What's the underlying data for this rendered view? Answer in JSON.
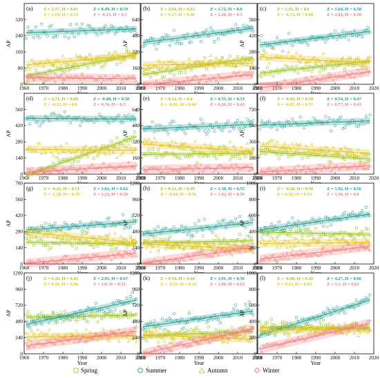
{
  "colors": {
    "Spring": "#9bc21a",
    "Summer": "#1c9a8e",
    "Autumn": "#e3c21c",
    "Winter": "#f07a78"
  },
  "x_axis_label": "Year",
  "y_axis_label": "AP",
  "legend": [
    "Spring",
    "Summer",
    "Autumn",
    "Winter"
  ],
  "chart_data": [
    {
      "type": "scatter",
      "panel": "(a)",
      "xlim": [
        1960,
        2020
      ],
      "ylim": [
        0,
        400
      ],
      "yticks": [
        0,
        80,
        160,
        240,
        320
      ],
      "xticks": [
        1960,
        1970,
        1980,
        1990,
        2000,
        2010,
        2020
      ],
      "xlabel": "Year",
      "ylabel": "AP",
      "series": [
        {
          "name": "Spring",
          "mean": 95,
          "stats": "Z = 2.57, H = 0.61"
        },
        {
          "name": "Summer",
          "mean": 265,
          "stats": "Z = 0.49, H = 0.59"
        },
        {
          "name": "Autumn",
          "mean": 120,
          "stats": "Z = 1.19, H = 0.53"
        },
        {
          "name": "Winter",
          "mean": 30,
          "stats": "Z = -0.13, H = 0.5"
        }
      ]
    },
    {
      "type": "scatter",
      "panel": "(b)",
      "xlim": [
        1960,
        2020
      ],
      "ylim": [
        0,
        800
      ],
      "yticks": [
        0,
        160,
        320,
        480,
        640
      ],
      "xticks": [
        1960,
        1970,
        1980,
        1990,
        2000,
        2010,
        2020
      ],
      "xlabel": "Year",
      "ylabel": "AP",
      "series": [
        {
          "name": "Spring",
          "mean": 180,
          "stats": "Z = 2.04, H = 0.62"
        },
        {
          "name": "Summer",
          "mean": 485,
          "stats": "Z = 1.72, H = 0.6"
        },
        {
          "name": "Autumn",
          "mean": 200,
          "stats": "Z = 0.27, H = 0.46"
        },
        {
          "name": "Winter",
          "mean": 45,
          "stats": "Z = 1.26, H = 0.5"
        }
      ]
    },
    {
      "type": "scatter",
      "panel": "(c)",
      "xlim": [
        1960,
        2020
      ],
      "ylim": [
        0,
        700
      ],
      "yticks": [
        0,
        140,
        280,
        420,
        560
      ],
      "xticks": [
        1960,
        1970,
        1980,
        1990,
        2000,
        2010,
        2020
      ],
      "xlabel": "Year",
      "ylabel": "AP",
      "series": [
        {
          "name": "Spring",
          "mean": 150,
          "stats": "Z = 1.45, H = 0.6"
        },
        {
          "name": "Summer",
          "mean": 400,
          "stats": "Z = 1.64, H = 0.58"
        },
        {
          "name": "Autumn",
          "mean": 210,
          "stats": "Z = -0.73, H = 0.68"
        },
        {
          "name": "Winter",
          "mean": 40,
          "stats": "Z = 2.01, H = 0.58"
        }
      ]
    },
    {
      "type": "scatter",
      "panel": "(d)",
      "xlim": [
        1960,
        2020
      ],
      "ylim": [
        0,
        700
      ],
      "yticks": [
        0,
        140,
        280,
        420,
        560
      ],
      "xticks": [
        1960,
        1970,
        1980,
        1990,
        2000,
        2010,
        2020
      ],
      "xlabel": "Year",
      "ylabel": "AP",
      "series": [
        {
          "name": "Spring",
          "mean": 160,
          "stats": "Z = 4.71, H = 0.68"
        },
        {
          "name": "Summer",
          "mean": 480,
          "stats": "Z = -0.08, H = 0.58"
        },
        {
          "name": "Autumn",
          "mean": 210,
          "stats": "Z = -0.12, H = 0.6"
        },
        {
          "name": "Winter",
          "mean": 45,
          "stats": "Z = 0.76, H = 0.5"
        }
      ]
    },
    {
      "type": "scatter",
      "panel": "(e)",
      "xlim": [
        1960,
        2020
      ],
      "ylim": [
        0,
        800
      ],
      "yticks": [
        0,
        160,
        320,
        480,
        640
      ],
      "xticks": [
        1960,
        1970,
        1980,
        1990,
        2000,
        2010,
        2020
      ],
      "xlabel": "Year",
      "ylabel": "AP",
      "series": [
        {
          "name": "Spring",
          "mean": 200,
          "stats": "Z = 0.12, H = 0.6"
        },
        {
          "name": "Summer",
          "mean": 470,
          "stats": "Z = 0.55, H = 0.53"
        },
        {
          "name": "Autumn",
          "mean": 260,
          "stats": "Z = -0.92, H = 0.66"
        },
        {
          "name": "Winter",
          "mean": 55,
          "stats": "Z = 0.26, H = 0.43"
        }
      ]
    },
    {
      "type": "scatter",
      "panel": "(f)",
      "xlim": [
        1960,
        2020
      ],
      "ylim": [
        0,
        900
      ],
      "yticks": [
        0,
        180,
        360,
        540,
        720
      ],
      "xticks": [
        1960,
        1970,
        1980,
        1990,
        2000,
        2010,
        2020
      ],
      "xlabel": "Year",
      "ylabel": "AP",
      "series": [
        {
          "name": "Spring",
          "mean": 210,
          "stats": "Z = -0.92, H = 0.59"
        },
        {
          "name": "Summer",
          "mean": 570,
          "stats": "Z = 0.54, H = 0.47"
        },
        {
          "name": "Autumn",
          "mean": 270,
          "stats": "Z = -0.87, H = 0.55"
        },
        {
          "name": "Winter",
          "mean": 60,
          "stats": "Z = 0.77, H = 0.43"
        }
      ]
    },
    {
      "type": "scatter",
      "panel": "(g)",
      "xlim": [
        1960,
        2020
      ],
      "ylim": [
        0,
        700
      ],
      "yticks": [
        0,
        140,
        280,
        420,
        560,
        700
      ],
      "xticks": [
        1960,
        1970,
        1980,
        1990,
        2000,
        2010,
        2020
      ],
      "xlabel": "Year",
      "ylabel": "AP",
      "series": [
        {
          "name": "Spring",
          "mean": 180,
          "stats": "Z = -0.21, H = 0.51"
        },
        {
          "name": "Summer",
          "mean": 330,
          "stats": "Z = 1.01, H = 0.62"
        },
        {
          "name": "Autumn",
          "mean": 230,
          "stats": "Z = -1.28, H = 0.59"
        },
        {
          "name": "Winter",
          "mean": 50,
          "stats": "Z = 1.23, H = 0.58"
        }
      ]
    },
    {
      "type": "scatter",
      "panel": "(h)",
      "xlim": [
        1960,
        2020
      ],
      "ylim": [
        0,
        1200
      ],
      "yticks": [
        0,
        240,
        480,
        720,
        960,
        1200
      ],
      "xticks": [
        1960,
        1970,
        1980,
        1990,
        2000,
        2010,
        2020
      ],
      "xlabel": "Year",
      "ylabel": "AP",
      "series": [
        {
          "name": "Spring",
          "mean": 330,
          "stats": "Z = 0.21, H = 0.49"
        },
        {
          "name": "Summer",
          "mean": 530,
          "stats": "Z = 1.38, H = 0.55"
        },
        {
          "name": "Autumn",
          "mean": 260,
          "stats": "Z = -0.64, H = 0.56"
        },
        {
          "name": "Winter",
          "mean": 130,
          "stats": "Z = 1.93, H = 0.59"
        }
      ]
    },
    {
      "type": "scatter",
      "panel": "(i)",
      "xlim": [
        1960,
        2020
      ],
      "ylim": [
        0,
        1000
      ],
      "yticks": [
        0,
        200,
        400,
        600,
        800,
        1000
      ],
      "xticks": [
        1960,
        1970,
        1980,
        1990,
        2000,
        2010,
        2020
      ],
      "xlabel": "Year",
      "ylabel": "AP",
      "series": [
        {
          "name": "Spring",
          "mean": 380,
          "stats": "Z = -0.26, H = 0.56"
        },
        {
          "name": "Summer",
          "mean": 520,
          "stats": "Z = 1.92, H = 0.56"
        },
        {
          "name": "Autumn",
          "mean": 260,
          "stats": "Z = 0.16, H = 0.54"
        },
        {
          "name": "Winter",
          "mean": 140,
          "stats": "Z = 1.56, H = 0.6"
        }
      ]
    },
    {
      "type": "scatter",
      "panel": "(j)",
      "xlim": [
        1960,
        2020
      ],
      "ylim": [
        0,
        1200
      ],
      "yticks": [
        0,
        240,
        480,
        720,
        960,
        1200
      ],
      "xticks": [
        1960,
        1970,
        1980,
        1990,
        2000,
        2010,
        2020
      ],
      "xlabel": "Year",
      "ylabel": "AP",
      "series": [
        {
          "name": "Spring",
          "mean": 560,
          "stats": "Z = 0.26, H = 0.42"
        },
        {
          "name": "Summer",
          "mean": 620,
          "stats": "Z = 2.95, H = 0.67"
        },
        {
          "name": "Autumn",
          "mean": 260,
          "stats": "Z = 0.16, H = 0.46"
        },
        {
          "name": "Winter",
          "mean": 230,
          "stats": "Z = 1.8, H = 0.53"
        }
      ]
    },
    {
      "type": "scatter",
      "panel": "(k)",
      "xlim": [
        1960,
        2020
      ],
      "ylim": [
        0,
        1200
      ],
      "yticks": [
        0,
        240,
        480,
        720,
        960,
        1200
      ],
      "xticks": [
        1960,
        1970,
        1980,
        1990,
        2000,
        2010,
        2020
      ],
      "xlabel": "Year",
      "ylabel": "AP",
      "series": [
        {
          "name": "Spring",
          "mean": 300,
          "stats": "Z = 0.54, H = 0.44"
        },
        {
          "name": "Summer",
          "mean": 520,
          "stats": "Z = 1.91, H = 0.56"
        },
        {
          "name": "Autumn",
          "mean": 250,
          "stats": "Z = -0.53, H = 0.54"
        },
        {
          "name": "Winter",
          "mean": 190,
          "stats": "Z = 2.98, H = 0.62"
        }
      ]
    },
    {
      "type": "scatter",
      "panel": "(l)",
      "xlim": [
        1960,
        2020
      ],
      "ylim": [
        0,
        1000
      ],
      "yticks": [
        0,
        200,
        400,
        600,
        800,
        1000
      ],
      "xticks": [
        1960,
        1970,
        1980,
        1990,
        2000,
        2010,
        2020
      ],
      "xlabel": "Year",
      "ylabel": "AP",
      "series": [
        {
          "name": "Spring",
          "mean": 320,
          "stats": "Z = -0.08, H = 0.42"
        },
        {
          "name": "Summer",
          "mean": 450,
          "stats": "Z = 4.27, H = 0.66"
        },
        {
          "name": "Autumn",
          "mean": 300,
          "stats": "Z = 0.23, H = 0.64"
        },
        {
          "name": "Winter",
          "mean": 220,
          "stats": "Z = 3.1, H = 0.63"
        }
      ]
    }
  ]
}
